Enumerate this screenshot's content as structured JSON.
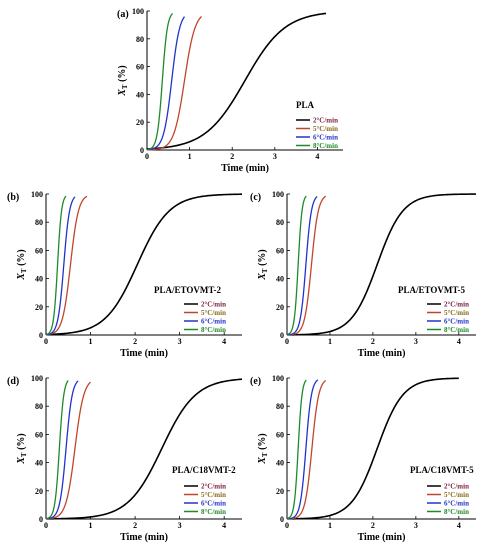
{
  "ylabel_main": "X",
  "ylabel_sub": "T",
  "ylabel_unit": "(%)",
  "xlabel": "Time (min)",
  "ylim": [
    0,
    100
  ],
  "y_ticks": [
    "0",
    "20",
    "40",
    "60",
    "80",
    "100"
  ],
  "colors": {
    "2C": "#000000",
    "5C": "#c0462b",
    "6C": "#2233cc",
    "8C": "#1e8a2a",
    "legend_2C_text": "#7a1f3d",
    "legend_5C_text": "#8a6a1a"
  },
  "chart_data": [
    {
      "type": "line",
      "panel": "(a)",
      "sample": "PLA",
      "x_ticks": [
        "0",
        "1",
        "2",
        "3",
        "4"
      ],
      "xlim": [
        0,
        4.6
      ],
      "series": [
        {
          "name": "2°C/min",
          "t_half": 2.3,
          "width": 0.47,
          "t_end": 4.2
        },
        {
          "name": "5°C/min",
          "t_half": 0.88,
          "width": 0.125,
          "t_end": 1.28
        },
        {
          "name": "6°C/min",
          "t_half": 0.58,
          "width": 0.095,
          "t_end": 0.88
        },
        {
          "name": "8°C/min",
          "t_half": 0.36,
          "width": 0.06,
          "t_end": 0.6
        }
      ]
    },
    {
      "type": "line",
      "panel": "(b)",
      "sample": "PLA/ETOVMT-2",
      "x_ticks": [
        "0",
        "1",
        "2",
        "3",
        "4"
      ],
      "xlim": [
        0,
        4.4
      ],
      "series": [
        {
          "name": "2°C/min",
          "t_half": 2.05,
          "width": 0.36,
          "t_end": 4.4
        },
        {
          "name": "5°C/min",
          "t_half": 0.55,
          "width": 0.09,
          "t_end": 0.92
        },
        {
          "name": "6°C/min",
          "t_half": 0.4,
          "width": 0.065,
          "t_end": 0.65
        },
        {
          "name": "8°C/min",
          "t_half": 0.26,
          "width": 0.045,
          "t_end": 0.45
        }
      ]
    },
    {
      "type": "line",
      "panel": "(c)",
      "sample": "PLA/ETOVMT-5",
      "x_ticks": [
        "0",
        "1",
        "2",
        "3",
        "4"
      ],
      "xlim": [
        0,
        4.4
      ],
      "series": [
        {
          "name": "2°C/min",
          "t_half": 2.1,
          "width": 0.3,
          "t_end": 4.4
        },
        {
          "name": "5°C/min",
          "t_half": 0.57,
          "width": 0.08,
          "t_end": 0.9
        },
        {
          "name": "6°C/min",
          "t_half": 0.44,
          "width": 0.065,
          "t_end": 0.7
        },
        {
          "name": "8°C/min",
          "t_half": 0.26,
          "width": 0.045,
          "t_end": 0.45
        }
      ]
    },
    {
      "type": "line",
      "panel": "(d)",
      "sample": "PLA/C18VMT-2",
      "x_ticks": [
        "0",
        "1",
        "2",
        "3",
        "4"
      ],
      "xlim": [
        0,
        4.4
      ],
      "series": [
        {
          "name": "2°C/min",
          "t_half": 2.6,
          "width": 0.38,
          "t_end": 4.4
        },
        {
          "name": "5°C/min",
          "t_half": 0.65,
          "width": 0.1,
          "t_end": 1.0
        },
        {
          "name": "6°C/min",
          "t_half": 0.45,
          "width": 0.07,
          "t_end": 0.72
        },
        {
          "name": "8°C/min",
          "t_half": 0.3,
          "width": 0.05,
          "t_end": 0.5
        }
      ]
    },
    {
      "type": "line",
      "panel": "(e)",
      "sample": "PLA/C18VMT-5",
      "x_ticks": [
        "0",
        "1",
        "2",
        "3",
        "4"
      ],
      "xlim": [
        0,
        4.4
      ],
      "series": [
        {
          "name": "2°C/min",
          "t_half": 2.1,
          "width": 0.3,
          "t_end": 4.0
        },
        {
          "name": "5°C/min",
          "t_half": 0.58,
          "width": 0.08,
          "t_end": 0.9
        },
        {
          "name": "6°C/min",
          "t_half": 0.44,
          "width": 0.065,
          "t_end": 0.72
        },
        {
          "name": "8°C/min",
          "t_half": 0.26,
          "width": 0.045,
          "t_end": 0.45
        }
      ]
    }
  ]
}
